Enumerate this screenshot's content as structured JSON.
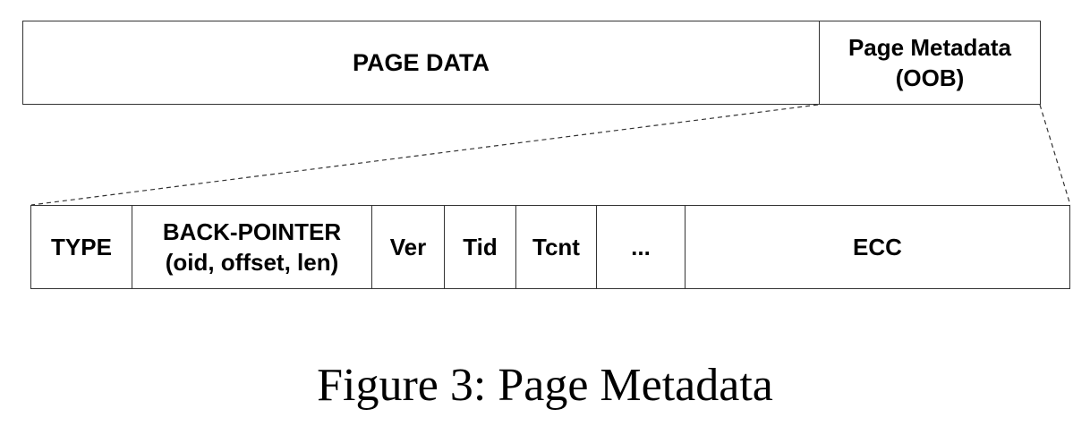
{
  "page": {
    "segments": [
      {
        "label": "PAGE DATA"
      },
      {
        "label_line1": "Page Metadata",
        "label_line2": "(OOB)"
      }
    ]
  },
  "metadata_fields": [
    {
      "label": "TYPE"
    },
    {
      "label_line1": "BACK-POINTER",
      "label_line2": "(oid, offset, len)"
    },
    {
      "label": "Ver"
    },
    {
      "label": "Tid"
    },
    {
      "label": "Tcnt"
    },
    {
      "label": "..."
    },
    {
      "label": "ECC"
    }
  ],
  "caption": "Figure 3: Page Metadata",
  "colors": {
    "line": "#333333",
    "text": "#000000",
    "background": "#ffffff"
  }
}
